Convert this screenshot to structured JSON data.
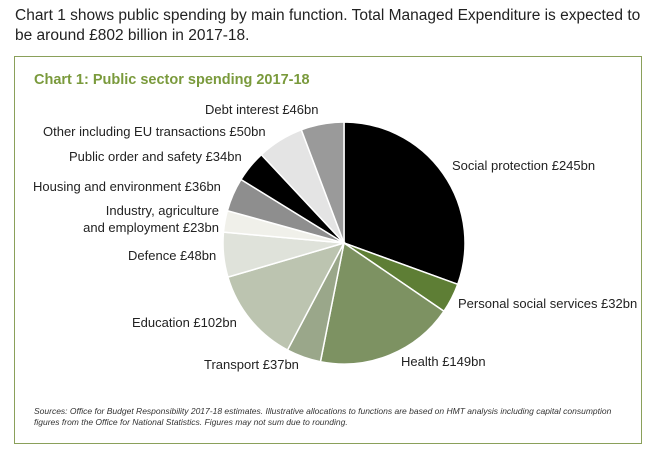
{
  "intro": "Chart 1 shows public spending by main function. Total Managed Expenditure is expected to be around £802 billion in 2017-18.",
  "chart_data": {
    "type": "pie",
    "title": "Chart 1: Public sector spending 2017-18",
    "slices": [
      {
        "label": "Social protection £245bn",
        "value": 245,
        "color": "#000000"
      },
      {
        "label": "Personal social services £32bn",
        "value": 32,
        "color": "#5e7e35"
      },
      {
        "label": "Health £149bn",
        "value": 149,
        "color": "#7d9262"
      },
      {
        "label": "Transport £37bn",
        "value": 37,
        "color": "#9aa78a"
      },
      {
        "label": "Education £102bn",
        "value": 102,
        "color": "#bcc4b0"
      },
      {
        "label": "Defence £48bn",
        "value": 48,
        "color": "#dfe2da"
      },
      {
        "label": "Industry, agriculture and employment £23bn",
        "label_lines": [
          "Industry, agriculture",
          "and employment £23bn"
        ],
        "value": 23,
        "color": "#f0f0ea"
      },
      {
        "label": "Housing and environment £36bn",
        "value": 36,
        "color": "#8e8e8e"
      },
      {
        "label": "Public order and safety £34bn",
        "value": 34,
        "color": "#000000"
      },
      {
        "label": "Other including EU transactions £50bn",
        "value": 50,
        "color": "#e4e4e4"
      },
      {
        "label": "Debt interest £46bn",
        "value": 46,
        "color": "#9a9a9a"
      }
    ],
    "sources": "Sources: Office for Budget Responsibility 2017-18 estimates. Illustrative allocations to functions are based on HMT analysis including capital consumption figures from the Office for National Statistics. Figures may not sum due to rounding."
  }
}
